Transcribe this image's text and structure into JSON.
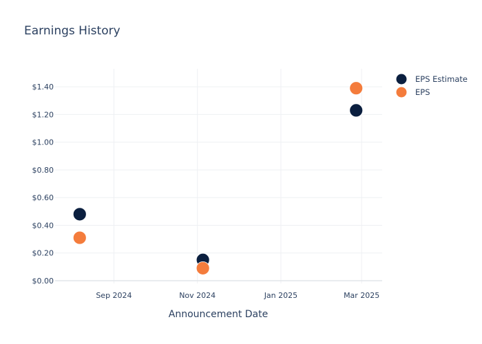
{
  "chart_data": {
    "type": "scatter",
    "title": "Earnings History",
    "xlabel": "Announcement Date",
    "ylabel": "",
    "x_ticks": [
      {
        "date": "2024-09-01",
        "label": "Sep 2024"
      },
      {
        "date": "2024-11-01",
        "label": "Nov 2024"
      },
      {
        "date": "2025-01-01",
        "label": "Jan 2025"
      },
      {
        "date": "2025-03-01",
        "label": "Mar 2025"
      }
    ],
    "y_ticks": [
      0,
      0.2,
      0.4,
      0.6,
      0.8,
      1.0,
      1.2,
      1.4
    ],
    "y_tick_labels": [
      "$0.00",
      "$0.20",
      "$0.40",
      "$0.60",
      "$0.80",
      "$1.00",
      "$1.20",
      "$1.40"
    ],
    "xlim": [
      "2024-07-20",
      "2025-03-16"
    ],
    "ylim": [
      -0.02,
      1.53
    ],
    "grid": true,
    "legend_position": "top-right",
    "series": [
      {
        "name": "EPS Estimate",
        "color": "#0b1f3f",
        "points": [
          {
            "x": "2024-08-07",
            "y": 0.48
          },
          {
            "x": "2024-11-05",
            "y": 0.15
          },
          {
            "x": "2025-02-25",
            "y": 1.23
          }
        ]
      },
      {
        "name": "EPS",
        "color": "#f47c3c",
        "points": [
          {
            "x": "2024-08-07",
            "y": 0.31
          },
          {
            "x": "2024-11-05",
            "y": 0.09
          },
          {
            "x": "2025-02-25",
            "y": 1.39
          }
        ]
      }
    ]
  }
}
